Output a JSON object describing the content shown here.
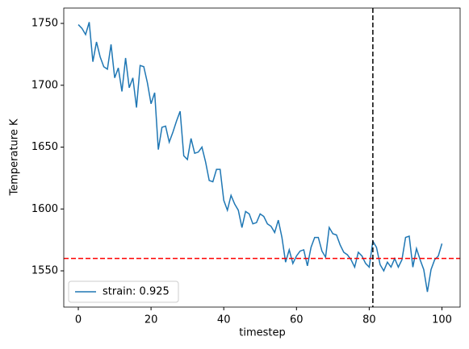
{
  "chart_data": {
    "type": "line",
    "x_label": "timestep",
    "y_label": "Temperature K",
    "x": [
      0,
      1,
      2,
      3,
      4,
      5,
      6,
      7,
      8,
      9,
      10,
      11,
      12,
      13,
      14,
      15,
      16,
      17,
      18,
      19,
      20,
      21,
      22,
      23,
      24,
      25,
      26,
      27,
      28,
      29,
      30,
      31,
      32,
      33,
      34,
      35,
      36,
      37,
      38,
      39,
      40,
      41,
      42,
      43,
      44,
      45,
      46,
      47,
      48,
      49,
      50,
      51,
      52,
      53,
      54,
      55,
      56,
      57,
      58,
      59,
      60,
      61,
      62,
      63,
      64,
      65,
      66,
      67,
      68,
      69,
      70,
      71,
      72,
      73,
      74,
      75,
      76,
      77,
      78,
      79,
      80,
      81,
      82,
      83,
      84,
      85,
      86,
      87,
      88,
      89,
      90,
      91,
      92,
      93,
      94,
      95,
      96,
      97,
      98,
      99,
      100
    ],
    "series": [
      {
        "name": "strain: 0.925",
        "color": "#1f77b4",
        "values": [
          1749,
          1746,
          1741,
          1751,
          1719,
          1735,
          1723,
          1715,
          1713,
          1733,
          1706,
          1714,
          1695,
          1722,
          1698,
          1706,
          1682,
          1716,
          1715,
          1702,
          1685,
          1694,
          1648,
          1666,
          1667,
          1654,
          1662,
          1671,
          1679,
          1643,
          1640,
          1657,
          1645,
          1646,
          1650,
          1638,
          1623,
          1622,
          1632,
          1632,
          1607,
          1599,
          1611,
          1604,
          1599,
          1585,
          1598,
          1596,
          1588,
          1589,
          1596,
          1594,
          1588,
          1586,
          1581,
          1591,
          1577,
          1557,
          1567,
          1556,
          1562,
          1566,
          1567,
          1554,
          1569,
          1577,
          1577,
          1566,
          1561,
          1585,
          1580,
          1579,
          1571,
          1565,
          1563,
          1559,
          1553,
          1565,
          1562,
          1556,
          1553,
          1574,
          1569,
          1555,
          1550,
          1557,
          1553,
          1560,
          1553,
          1559,
          1577,
          1578,
          1553,
          1568,
          1559,
          1551,
          1533,
          1551,
          1559,
          1562,
          1572
        ]
      }
    ],
    "hline": {
      "value": 1560,
      "color": "#ff0000"
    },
    "vline": {
      "value": 81,
      "color": "#000000"
    },
    "xlim": [
      -4,
      105
    ],
    "ylim": [
      1520.7,
      1762.4
    ],
    "xticks": [
      0,
      20,
      40,
      60,
      80,
      100
    ],
    "yticks": [
      1550,
      1600,
      1650,
      1700,
      1750
    ],
    "legend": "lower left"
  }
}
